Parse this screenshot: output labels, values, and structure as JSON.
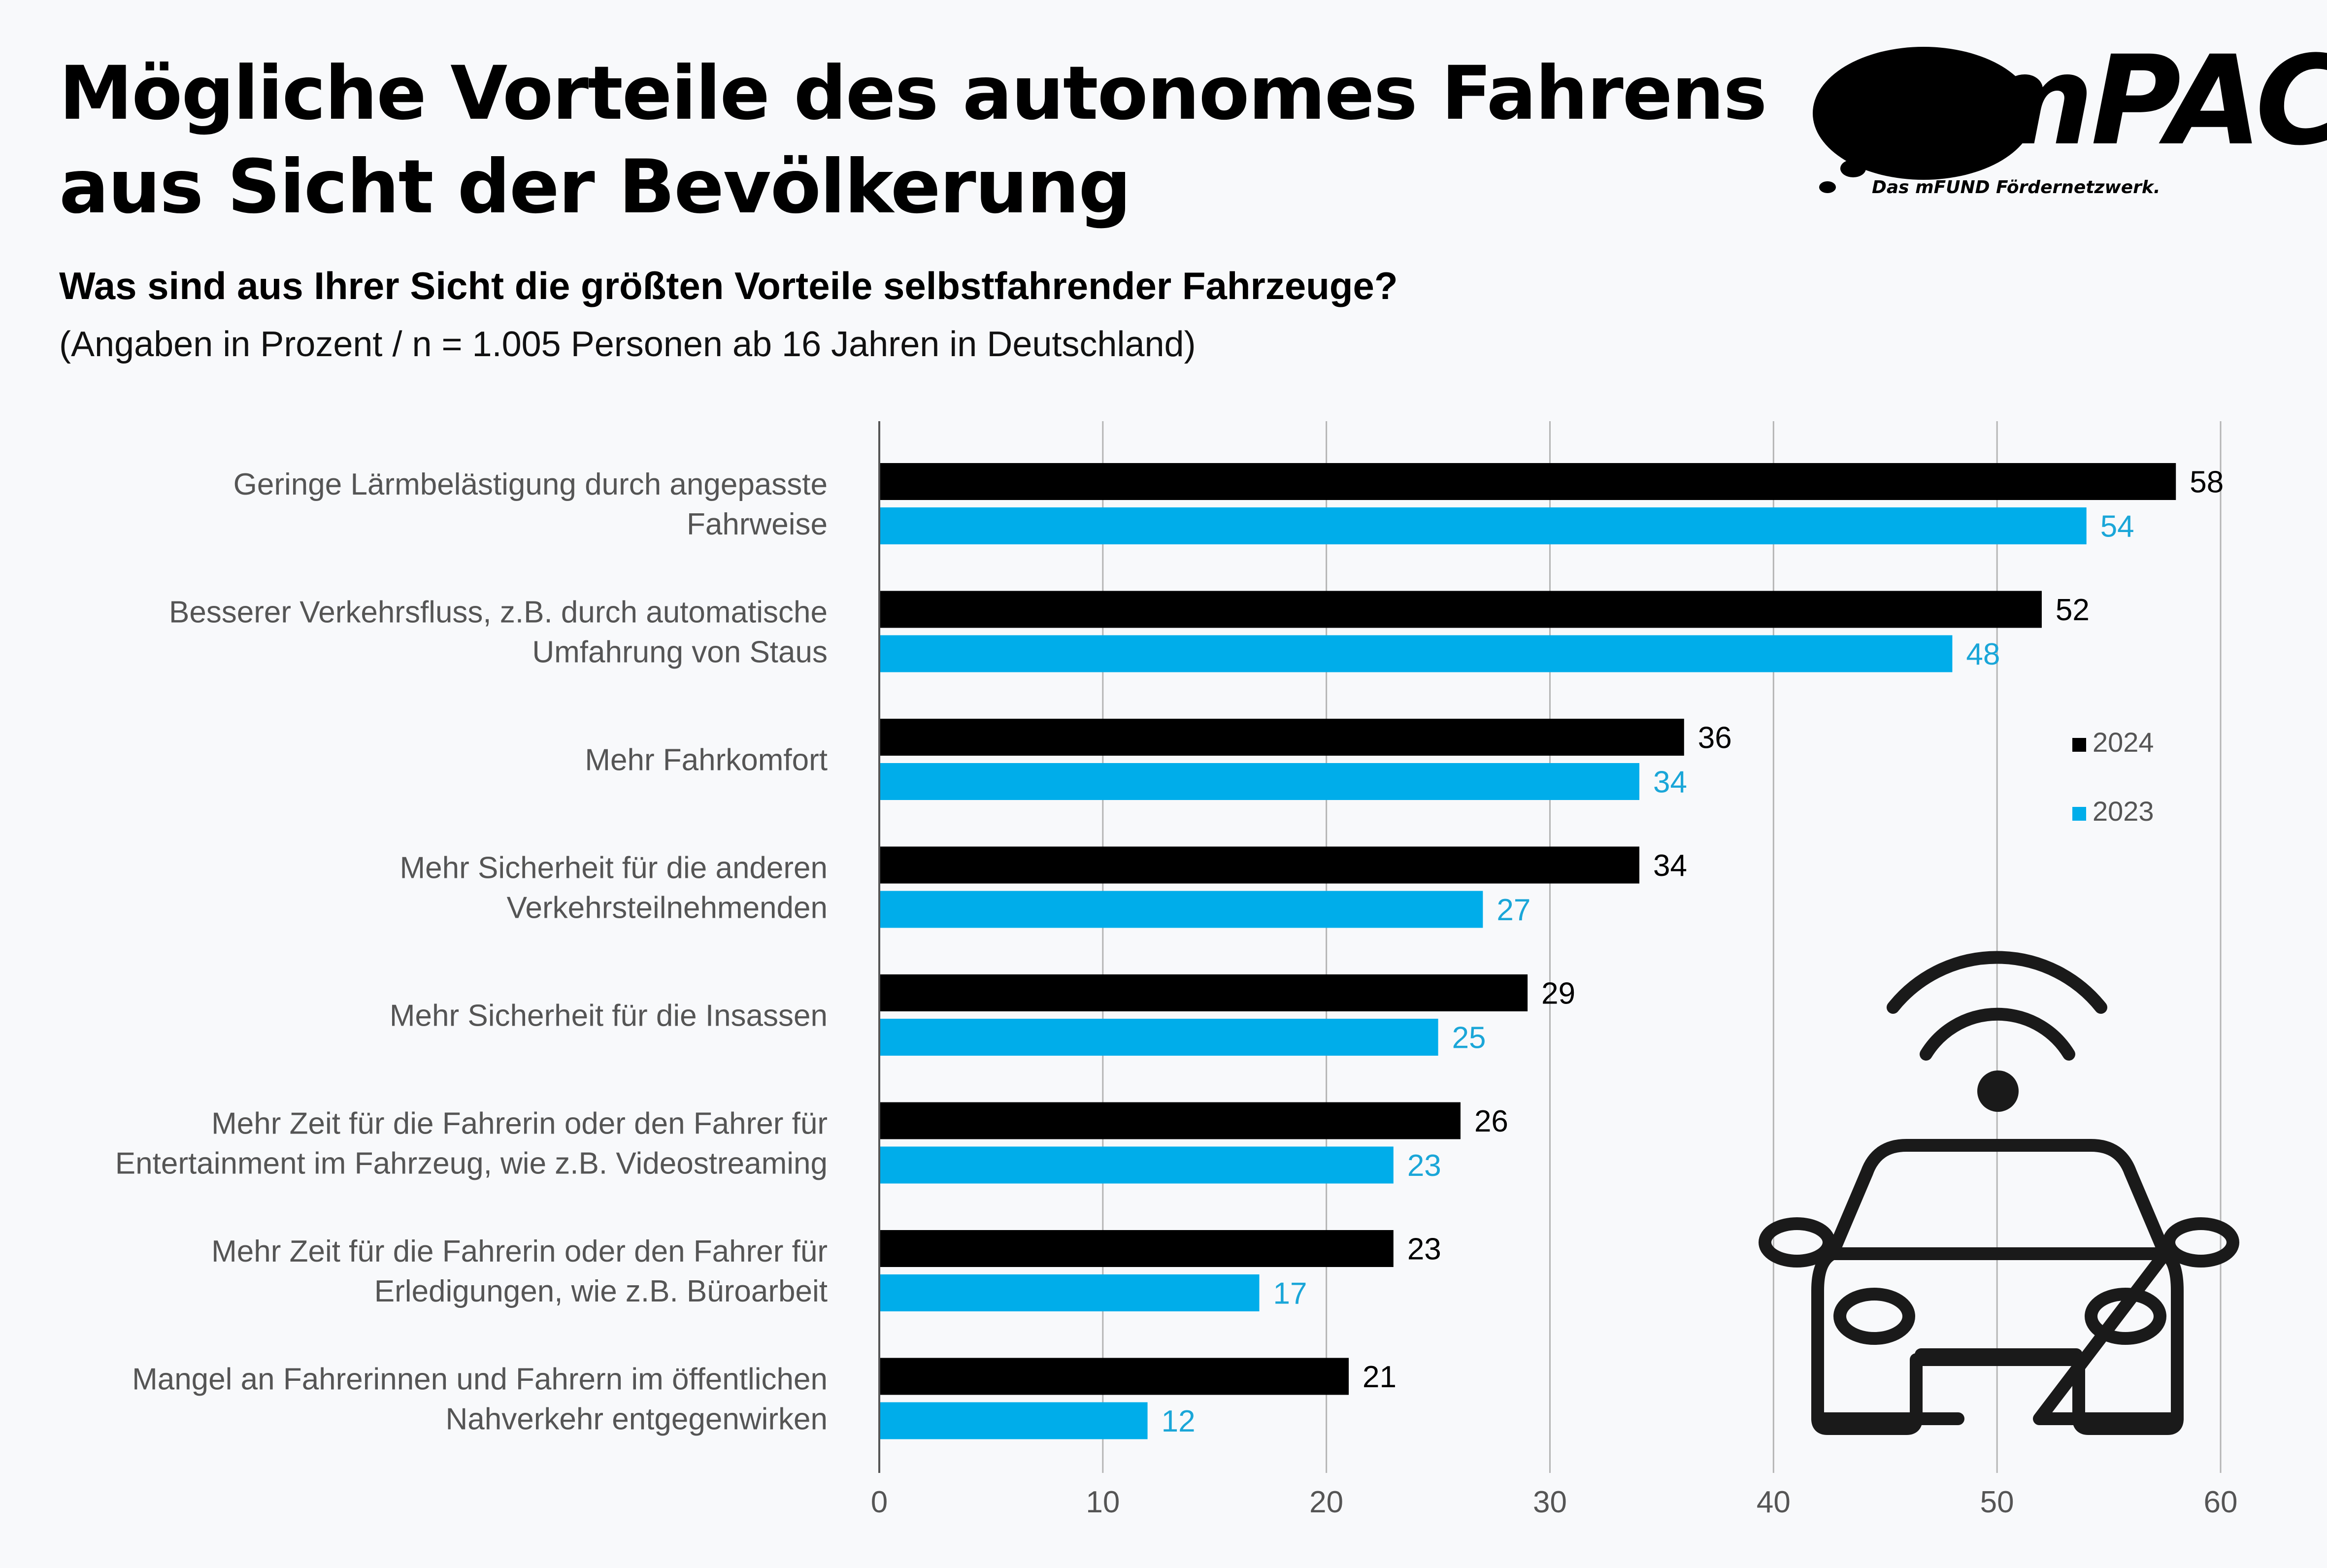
{
  "title_lines": [
    "Mögliche Vorteile des autonomes Fahrens",
    "aus Sicht der Bevölkerung"
  ],
  "subtitle": "Was sind aus Ihrer Sicht die größten Vorteile selbstfahrender Fahrzeuge?",
  "note": "(Angaben in Prozent / n = 1.005 Personen ab 16 Jahren in Deutschland)",
  "logo": {
    "text": "mPACT",
    "tagline": "Das mFUND Fördernetzwerk."
  },
  "chart_data": {
    "type": "bar",
    "orientation": "horizontal",
    "categories": [
      [
        "Geringe Lärmbelästigung durch angepasste",
        "Fahrweise"
      ],
      [
        "Besserer Verkehrsfluss, z.B. durch automatische",
        "Umfahrung von Staus"
      ],
      [
        "Mehr Fahrkomfort"
      ],
      [
        "Mehr Sicherheit für die anderen",
        "Verkehrsteilnehmenden"
      ],
      [
        "Mehr Sicherheit für die Insassen"
      ],
      [
        "Mehr Zeit für die Fahrerin oder den Fahrer für",
        "Entertainment im Fahrzeug, wie z.B. Videostreaming"
      ],
      [
        "Mehr Zeit für die Fahrerin oder den Fahrer für",
        "Erledigungen, wie z.B. Büroarbeit"
      ],
      [
        "Mangel an Fahrerinnen und Fahrern im öffentlichen",
        "Nahverkehr entgegenwirken"
      ]
    ],
    "series": [
      {
        "name": "2024",
        "color": "#000000",
        "label_color": "#000000",
        "values": [
          58,
          52,
          36,
          34,
          29,
          26,
          23,
          21
        ]
      },
      {
        "name": "2023",
        "color": "#00adea",
        "label_color": "#1aa6d8",
        "values": [
          54,
          48,
          34,
          27,
          25,
          23,
          17,
          12
        ]
      }
    ],
    "xlim": [
      0,
      60
    ],
    "xticks": [
      0,
      10,
      20,
      30,
      40,
      50,
      60
    ],
    "grid": true,
    "legend_position": "right",
    "xlabel": "",
    "ylabel": ""
  }
}
